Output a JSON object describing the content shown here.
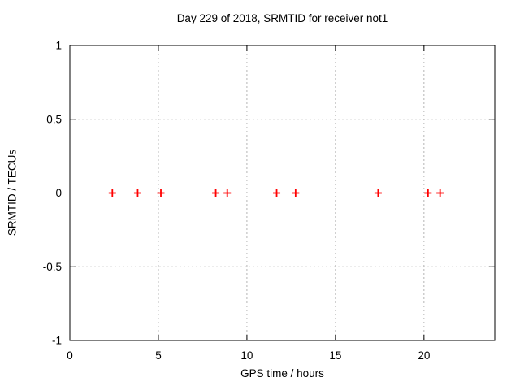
{
  "chart_data": {
    "type": "scatter",
    "title": "Day 229 of 2018, SRMTID for receiver not1",
    "xlabel": "GPS time / hours",
    "ylabel": "SRMTID / TECUs",
    "xlim": [
      0,
      24
    ],
    "ylim": [
      -1,
      1
    ],
    "xticks": [
      0,
      5,
      10,
      15,
      20
    ],
    "xtick_labels": [
      "0",
      "5",
      "10",
      "15",
      "20"
    ],
    "yticks": [
      -1,
      -0.5,
      0,
      0.5,
      1
    ],
    "ytick_labels": [
      "-1",
      "-0.5",
      "0",
      "0.5",
      "1"
    ],
    "grid": true,
    "legend": "none",
    "marker": "plus",
    "marker_color": "#ff0000",
    "axis_color": "#000000",
    "grid_color": "#b4b4b4",
    "background_color": "#ffffff",
    "series": [
      {
        "name": "SRMTID",
        "x": [
          2.4,
          3.83,
          5.14,
          8.24,
          8.89,
          11.68,
          12.75,
          17.41,
          20.23,
          20.91
        ],
        "y": [
          0,
          0,
          0,
          0,
          0,
          0,
          0,
          0,
          0,
          0
        ]
      }
    ]
  }
}
